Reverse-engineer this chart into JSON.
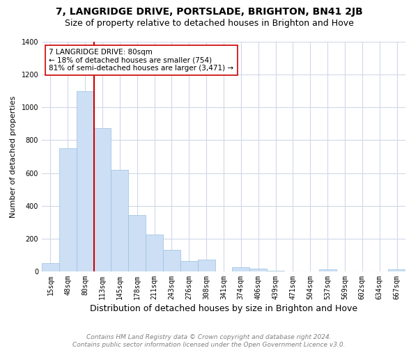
{
  "title": "7, LANGRIDGE DRIVE, PORTSLADE, BRIGHTON, BN41 2JB",
  "subtitle": "Size of property relative to detached houses in Brighton and Hove",
  "xlabel": "Distribution of detached houses by size in Brighton and Hove",
  "ylabel": "Number of detached properties",
  "categories": [
    "15sqm",
    "48sqm",
    "80sqm",
    "113sqm",
    "145sqm",
    "178sqm",
    "211sqm",
    "243sqm",
    "276sqm",
    "308sqm",
    "341sqm",
    "374sqm",
    "406sqm",
    "439sqm",
    "471sqm",
    "504sqm",
    "537sqm",
    "569sqm",
    "602sqm",
    "634sqm",
    "667sqm"
  ],
  "values": [
    50,
    750,
    1100,
    875,
    620,
    345,
    225,
    130,
    65,
    72,
    0,
    25,
    18,
    5,
    0,
    0,
    12,
    0,
    0,
    0,
    12
  ],
  "bar_color": "#ccdff5",
  "bar_edge_color": "#9bbfe0",
  "vline_x": 2.5,
  "vline_color": "#cc0000",
  "vline_linewidth": 1.5,
  "annotation_text": "7 LANGRIDGE DRIVE: 80sqm\n← 18% of detached houses are smaller (754)\n81% of semi-detached houses are larger (3,471) →",
  "annotation_box_color": "#ffffff",
  "annotation_box_edgecolor": "#cc0000",
  "ylim": [
    0,
    1400
  ],
  "yticks": [
    0,
    200,
    400,
    600,
    800,
    1000,
    1200,
    1400
  ],
  "footer1": "Contains HM Land Registry data © Crown copyright and database right 2024.",
  "footer2": "Contains public sector information licensed under the Open Government Licence v3.0.",
  "bg_color": "#ffffff",
  "plot_bg_color": "#ffffff",
  "grid_color": "#d0d8e8",
  "title_fontsize": 10,
  "subtitle_fontsize": 9,
  "xlabel_fontsize": 9,
  "ylabel_fontsize": 8,
  "tick_fontsize": 7,
  "footer_fontsize": 6.5
}
